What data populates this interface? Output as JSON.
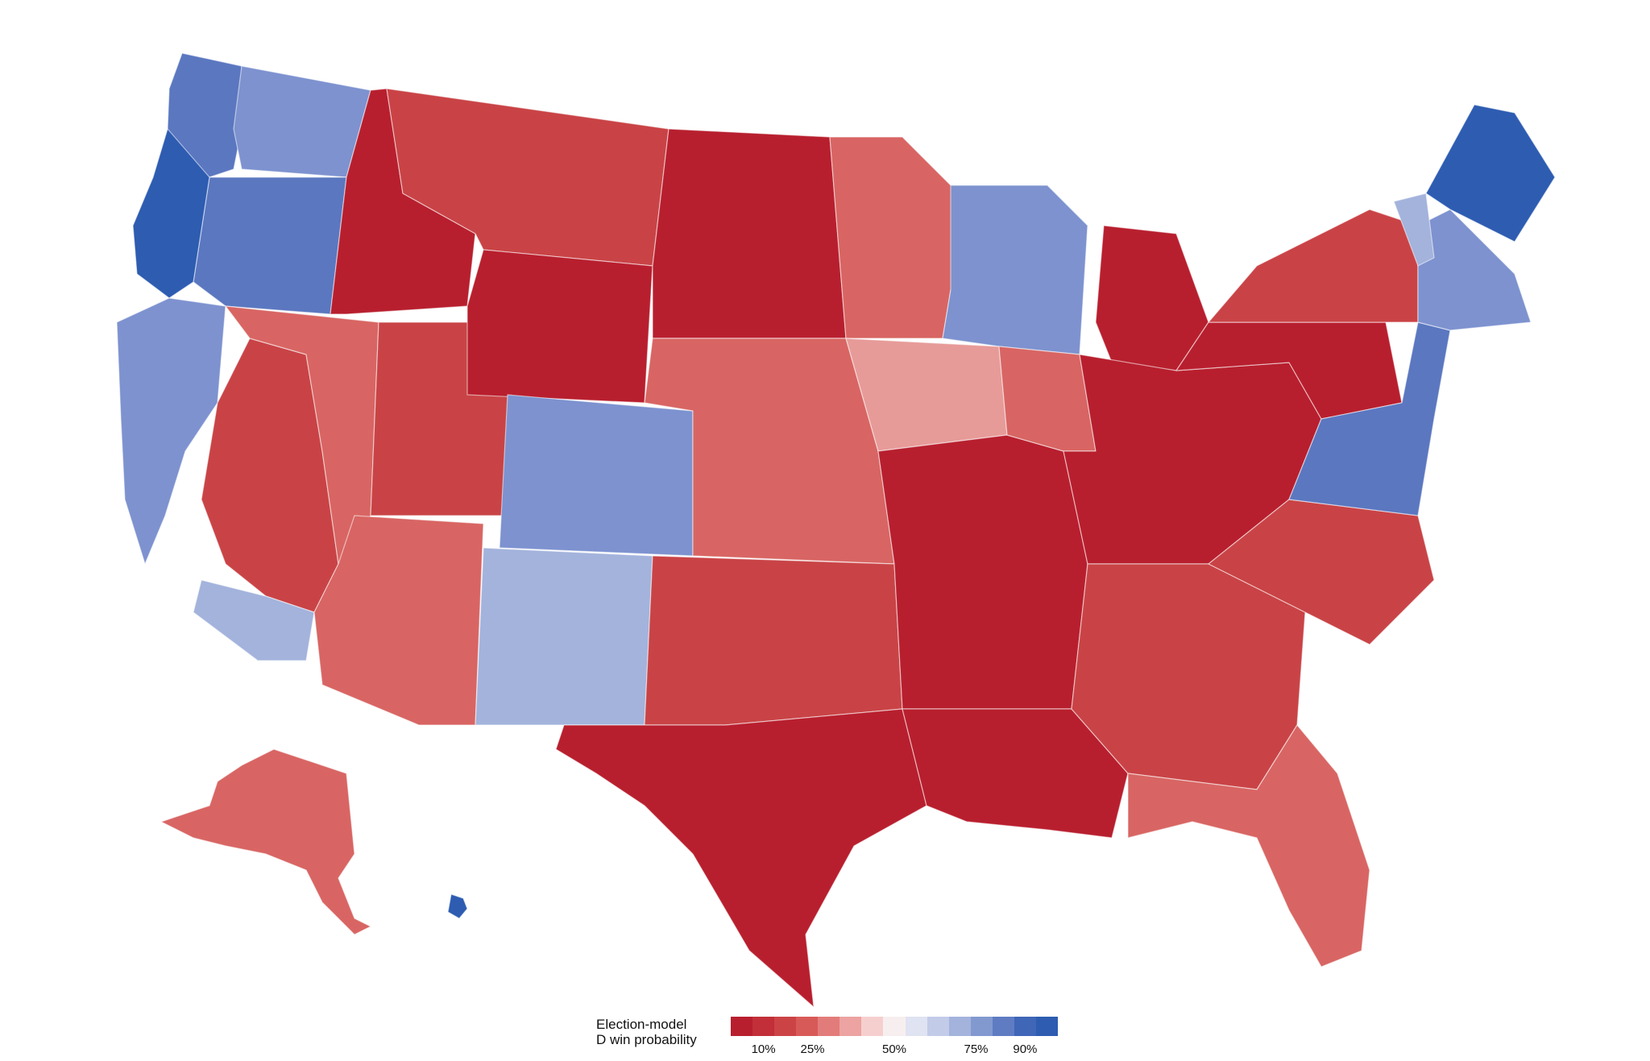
{
  "colors": {
    "strong_r": "#b81f2e",
    "likely_r": "#c94346",
    "lean_r": "#d86563",
    "tilt_r": "#e79b99",
    "toss": "#f4dede",
    "tilt_d": "#a3b3dc",
    "lean_d": "#7d92cf",
    "likely_d": "#5b77c0",
    "strong_d": "#2d5cb1"
  },
  "legend": {
    "title_line1": "Election-model",
    "title_line2": "D win probability",
    "gradient": [
      "#b81f2e",
      "#c22f38",
      "#cc4346",
      "#d85a58",
      "#e27c7a",
      "#eca3a1",
      "#f5cfcd",
      "#f7efef",
      "#dfe3f2",
      "#c2cbe8",
      "#a3b3dc",
      "#8299d0",
      "#5f7cc3",
      "#3f66b7",
      "#2d5cb1"
    ],
    "ticks": [
      {
        "label": "10%",
        "p": 0.1
      },
      {
        "label": "25%",
        "p": 0.25
      },
      {
        "label": "50%",
        "p": 0.5
      },
      {
        "label": "75%",
        "p": 0.75
      },
      {
        "label": "90%",
        "p": 0.9
      }
    ]
  },
  "regions": [
    {
      "name": "washington-west",
      "rating": "likely_d"
    },
    {
      "name": "washington-east",
      "rating": "lean_d"
    },
    {
      "name": "oregon",
      "rating": "likely_d"
    },
    {
      "name": "oregon-coast",
      "rating": "strong_d"
    },
    {
      "name": "california-north",
      "rating": "lean_d"
    },
    {
      "name": "california-central",
      "rating": "likely_r"
    },
    {
      "name": "california-south",
      "rating": "tilt_d"
    },
    {
      "name": "idaho",
      "rating": "strong_r"
    },
    {
      "name": "montana",
      "rating": "likely_r"
    },
    {
      "name": "nevada",
      "rating": "lean_r"
    },
    {
      "name": "utah",
      "rating": "likely_r"
    },
    {
      "name": "arizona",
      "rating": "lean_r"
    },
    {
      "name": "wyoming",
      "rating": "strong_r"
    },
    {
      "name": "colorado",
      "rating": "lean_d"
    },
    {
      "name": "new-mexico",
      "rating": "tilt_d"
    },
    {
      "name": "dakotas",
      "rating": "strong_r"
    },
    {
      "name": "plains",
      "rating": "lean_r"
    },
    {
      "name": "texas",
      "rating": "likely_r"
    },
    {
      "name": "oklahoma",
      "rating": "strong_r"
    },
    {
      "name": "minnesota",
      "rating": "lean_r"
    },
    {
      "name": "iowa",
      "rating": "tilt_r"
    },
    {
      "name": "midsouth",
      "rating": "strong_r"
    },
    {
      "name": "gulf",
      "rating": "strong_r"
    },
    {
      "name": "illinois",
      "rating": "lean_d"
    },
    {
      "name": "wisconsin",
      "rating": "lean_r"
    },
    {
      "name": "michigan",
      "rating": "strong_r"
    },
    {
      "name": "ohio-valley",
      "rating": "strong_r"
    },
    {
      "name": "southeast",
      "rating": "likely_r"
    },
    {
      "name": "florida",
      "rating": "likely_r"
    },
    {
      "name": "carolina",
      "rating": "lean_r"
    },
    {
      "name": "pennsylvania",
      "rating": "strong_r"
    },
    {
      "name": "new-york",
      "rating": "likely_r"
    },
    {
      "name": "mid-atlantic",
      "rating": "likely_d"
    },
    {
      "name": "new-england",
      "rating": "lean_d"
    },
    {
      "name": "maine",
      "rating": "tilt_d"
    },
    {
      "name": "vermont",
      "rating": "strong_d"
    },
    {
      "name": "alaska",
      "rating": "lean_r"
    },
    {
      "name": "hawaii",
      "rating": "strong_d"
    }
  ]
}
